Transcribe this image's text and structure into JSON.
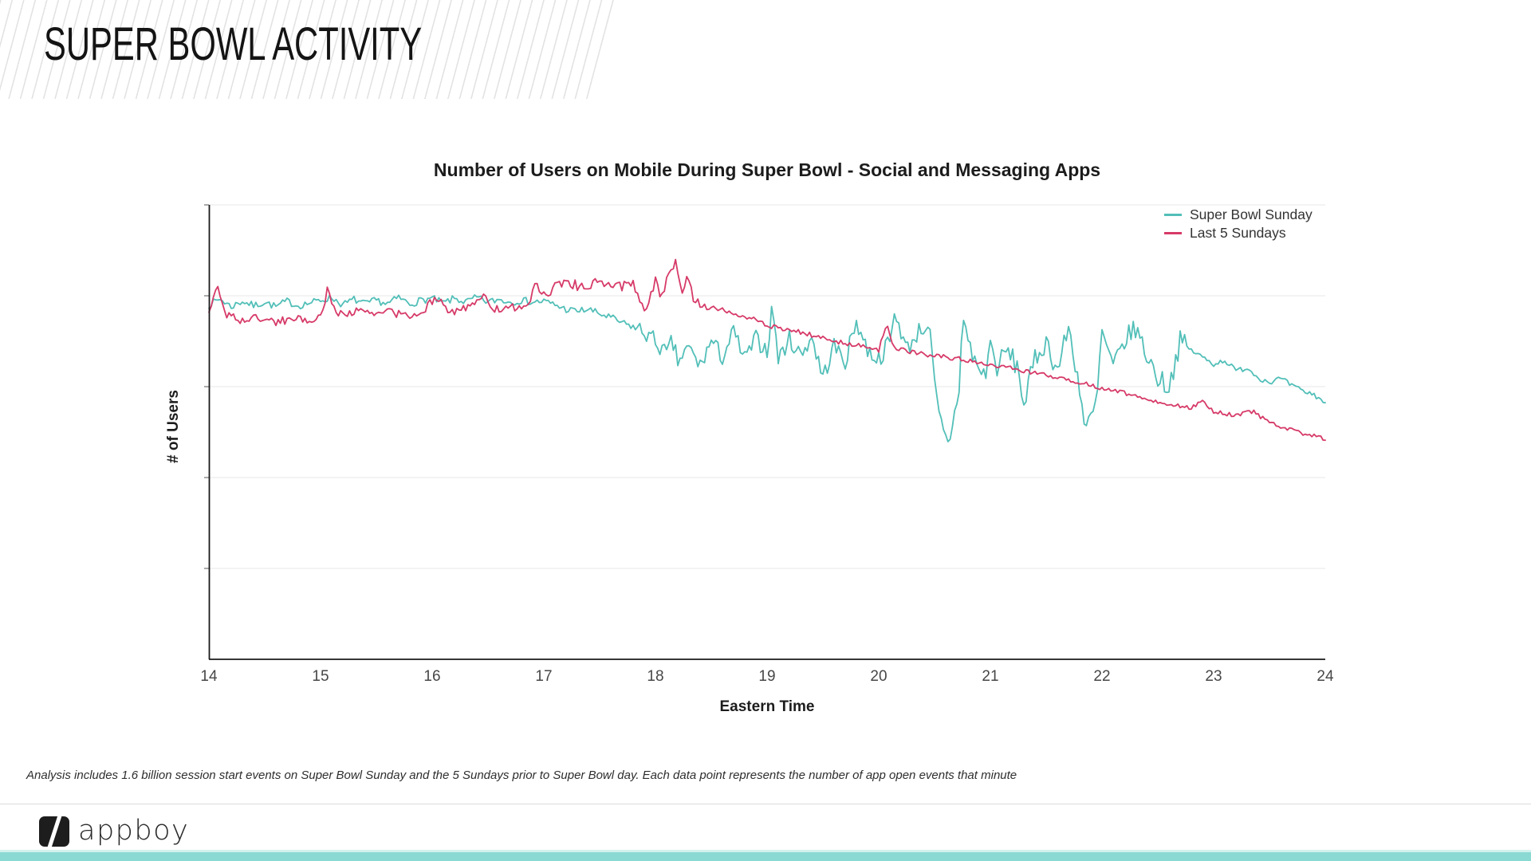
{
  "header": {
    "title": "SUPER BOWL ACTIVITY"
  },
  "footnote": {
    "text": "Analysis includes 1.6 billion session start events on Super Bowl Sunday and the 5 Sundays prior to Super Bowl day.  Each data point represents the number of app open events that minute"
  },
  "footer": {
    "logo_text": "appboy",
    "accent_bar_color": "#8bd9d3",
    "accent_bar_top": "#d2f1ee"
  },
  "chart_data": {
    "type": "line",
    "title": "Number of Users on Mobile During Super Bowl - Social and Messaging Apps",
    "xlabel": "Eastern Time",
    "ylabel": "# of Users",
    "xlim": [
      14,
      24
    ],
    "ylim": [
      0,
      100
    ],
    "x_ticks": [
      14,
      15,
      16,
      17,
      18,
      19,
      20,
      21,
      22,
      23,
      24
    ],
    "y_tick_labels_shown": false,
    "gridlines": [
      20,
      40,
      60,
      80,
      100
    ],
    "grid_on": true,
    "grid_color": "#e7e7e7",
    "axis_color": "#1a1a1a",
    "tick_color": "#555555",
    "legend_position": "top-right",
    "noise_seed": 7,
    "sample_step_hours": 0.02,
    "units_note": "y values are relative index (no numeric labels shown on axis); x is hour of day, Eastern Time; each point = app opens that minute",
    "series": [
      {
        "name": "Super Bowl Sunday",
        "color": "#52bfb8",
        "noise": [
          [
            14,
            17.8,
            0.8
          ],
          [
            17.8,
            20.4,
            2.0
          ],
          [
            20.4,
            22.75,
            2.4
          ],
          [
            22.75,
            24,
            0.6
          ]
        ],
        "anchors": [
          [
            14,
            78
          ],
          [
            14.1,
            79.3
          ],
          [
            14.2,
            77.6
          ],
          [
            14.3,
            78.8
          ],
          [
            14.4,
            77.8
          ],
          [
            14.5,
            78.6
          ],
          [
            14.6,
            77.6
          ],
          [
            14.7,
            78.8
          ],
          [
            14.8,
            77.8
          ],
          [
            14.9,
            78.4
          ],
          [
            15,
            79
          ],
          [
            15.1,
            79.6
          ],
          [
            15.2,
            78
          ],
          [
            15.3,
            79.2
          ],
          [
            15.4,
            78.2
          ],
          [
            15.5,
            79
          ],
          [
            15.6,
            78.2
          ],
          [
            15.7,
            79.6
          ],
          [
            15.8,
            78.2
          ],
          [
            15.9,
            79
          ],
          [
            16,
            79.4
          ],
          [
            16.1,
            78.4
          ],
          [
            16.2,
            79.4
          ],
          [
            16.3,
            78.6
          ],
          [
            16.4,
            79.6
          ],
          [
            16.5,
            78.6
          ],
          [
            16.6,
            79.2
          ],
          [
            16.7,
            78.6
          ],
          [
            16.8,
            79
          ],
          [
            16.9,
            78.6
          ],
          [
            17,
            78.8
          ],
          [
            17.1,
            78
          ],
          [
            17.2,
            77
          ],
          [
            17.3,
            76.6
          ],
          [
            17.4,
            77
          ],
          [
            17.5,
            76
          ],
          [
            17.6,
            75.2
          ],
          [
            17.7,
            74
          ],
          [
            17.8,
            73.2
          ],
          [
            17.9,
            72
          ],
          [
            18,
            70
          ],
          [
            18.1,
            67
          ],
          [
            18.15,
            70
          ],
          [
            18.2,
            65.5
          ],
          [
            18.3,
            68.5
          ],
          [
            18.4,
            64.5
          ],
          [
            18.5,
            70
          ],
          [
            18.6,
            66.5
          ],
          [
            18.7,
            72
          ],
          [
            18.8,
            66
          ],
          [
            18.9,
            70.5
          ],
          [
            19,
            68
          ],
          [
            19.05,
            78
          ],
          [
            19.1,
            66
          ],
          [
            19.2,
            70.5
          ],
          [
            19.3,
            67
          ],
          [
            19.4,
            71
          ],
          [
            19.5,
            62
          ],
          [
            19.6,
            69
          ],
          [
            19.7,
            65.5
          ],
          [
            19.8,
            74.5
          ],
          [
            19.9,
            68
          ],
          [
            20,
            66
          ],
          [
            20.1,
            70
          ],
          [
            20.15,
            76.5
          ],
          [
            20.25,
            68
          ],
          [
            20.35,
            72
          ],
          [
            20.45,
            74
          ],
          [
            20.5,
            60
          ],
          [
            20.55,
            52
          ],
          [
            20.62,
            47
          ],
          [
            20.68,
            54
          ],
          [
            20.72,
            60
          ],
          [
            20.75,
            75
          ],
          [
            20.85,
            66
          ],
          [
            20.95,
            62
          ],
          [
            21,
            70
          ],
          [
            21.05,
            64
          ],
          [
            21.15,
            68
          ],
          [
            21.25,
            64
          ],
          [
            21.3,
            56
          ],
          [
            21.4,
            66
          ],
          [
            21.5,
            70
          ],
          [
            21.6,
            63.5
          ],
          [
            21.7,
            73
          ],
          [
            21.8,
            60
          ],
          [
            21.85,
            50
          ],
          [
            21.95,
            56
          ],
          [
            22,
            72
          ],
          [
            22.1,
            64
          ],
          [
            22.2,
            70
          ],
          [
            22.3,
            73
          ],
          [
            22.4,
            67
          ],
          [
            22.5,
            62
          ],
          [
            22.6,
            60
          ],
          [
            22.7,
            70
          ],
          [
            22.8,
            68
          ],
          [
            22.9,
            66.5
          ],
          [
            23,
            65
          ],
          [
            23.1,
            65.8
          ],
          [
            23.2,
            63.5
          ],
          [
            23.3,
            64.2
          ],
          [
            23.4,
            62
          ],
          [
            23.5,
            61
          ],
          [
            23.6,
            61.8
          ],
          [
            23.7,
            60.2
          ],
          [
            23.8,
            59
          ],
          [
            23.9,
            58.2
          ],
          [
            24,
            56.5
          ]
        ]
      },
      {
        "name": "Last 5 Sundays",
        "color": "#d63a68",
        "noise": [
          [
            14,
            16.9,
            0.9
          ],
          [
            16.9,
            18.4,
            1.3
          ],
          [
            18.4,
            21,
            0.5
          ],
          [
            21,
            24,
            0.45
          ]
        ],
        "anchors": [
          [
            14,
            76.5
          ],
          [
            14.08,
            82
          ],
          [
            14.15,
            76
          ],
          [
            14.3,
            74.5
          ],
          [
            14.45,
            75.2
          ],
          [
            14.6,
            74.2
          ],
          [
            14.75,
            75
          ],
          [
            14.9,
            74.6
          ],
          [
            15,
            75.4
          ],
          [
            15.06,
            81
          ],
          [
            15.15,
            76
          ],
          [
            15.3,
            76.6
          ],
          [
            15.45,
            76
          ],
          [
            15.6,
            76.6
          ],
          [
            15.75,
            75.6
          ],
          [
            15.9,
            76.2
          ],
          [
            16.05,
            80
          ],
          [
            16.15,
            76.6
          ],
          [
            16.3,
            77
          ],
          [
            16.45,
            80
          ],
          [
            16.55,
            77
          ],
          [
            16.7,
            77.6
          ],
          [
            16.85,
            77
          ],
          [
            16.93,
            83
          ],
          [
            17,
            80
          ],
          [
            17.1,
            82
          ],
          [
            17.25,
            82.6
          ],
          [
            17.4,
            82
          ],
          [
            17.55,
            83.2
          ],
          [
            17.7,
            82
          ],
          [
            17.8,
            82.6
          ],
          [
            17.9,
            77
          ],
          [
            18,
            83
          ],
          [
            18.06,
            80
          ],
          [
            18.12,
            84.5
          ],
          [
            18.18,
            88
          ],
          [
            18.23,
            81
          ],
          [
            18.28,
            84.5
          ],
          [
            18.35,
            79
          ],
          [
            18.45,
            77.5
          ],
          [
            18.6,
            77
          ],
          [
            18.75,
            75.8
          ],
          [
            18.9,
            74.8
          ],
          [
            19,
            73.5
          ],
          [
            19.15,
            72.6
          ],
          [
            19.3,
            72
          ],
          [
            19.45,
            71
          ],
          [
            19.6,
            70
          ],
          [
            19.75,
            69.4
          ],
          [
            19.9,
            68.6
          ],
          [
            20,
            68
          ],
          [
            20.07,
            74
          ],
          [
            20.14,
            68.5
          ],
          [
            20.3,
            67.6
          ],
          [
            20.45,
            67
          ],
          [
            20.6,
            66.5
          ],
          [
            20.75,
            66
          ],
          [
            20.9,
            65.4
          ],
          [
            21,
            64.6
          ],
          [
            21.2,
            64
          ],
          [
            21.4,
            63
          ],
          [
            21.6,
            62
          ],
          [
            21.8,
            61
          ],
          [
            22,
            59.6
          ],
          [
            22.2,
            58.6
          ],
          [
            22.4,
            57.4
          ],
          [
            22.6,
            56
          ],
          [
            22.8,
            55.4
          ],
          [
            22.9,
            57
          ],
          [
            23,
            54.6
          ],
          [
            23.2,
            53.6
          ],
          [
            23.35,
            54.6
          ],
          [
            23.5,
            52
          ],
          [
            23.7,
            50.4
          ],
          [
            23.85,
            49.4
          ],
          [
            24,
            48.5
          ]
        ]
      }
    ]
  }
}
